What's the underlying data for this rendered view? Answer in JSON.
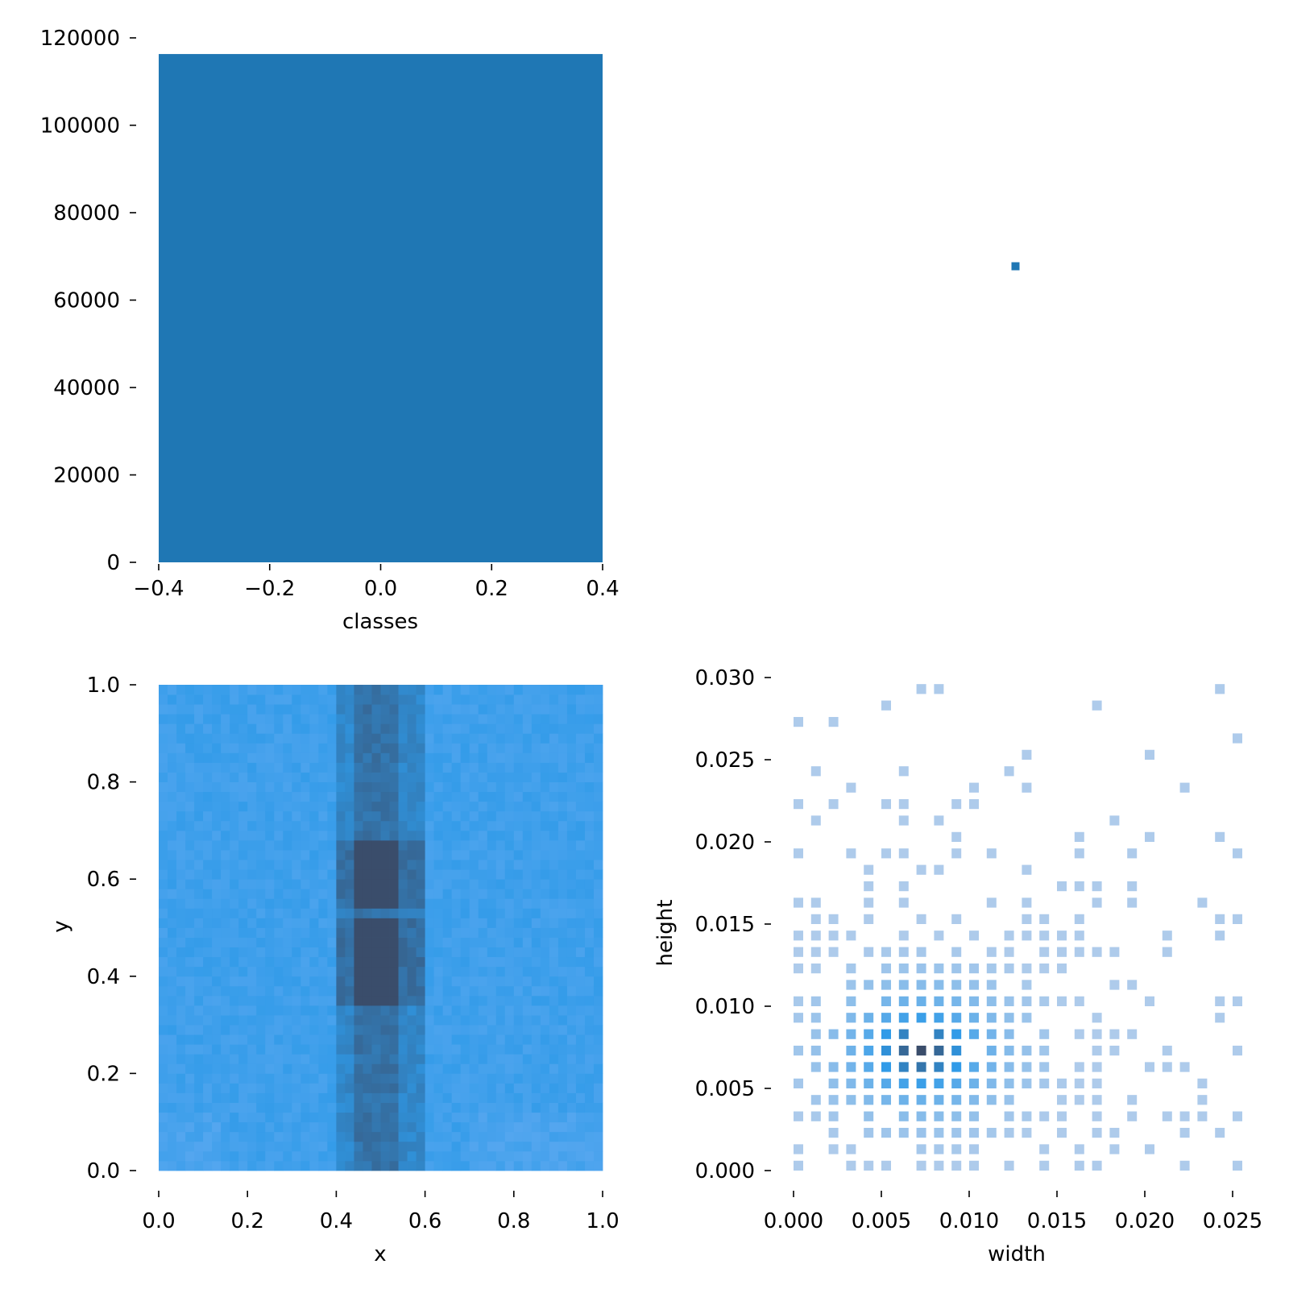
{
  "chart_data": [
    {
      "id": "classes-hist",
      "type": "bar",
      "xlabel": "classes",
      "ylabel": "",
      "xlim": [
        -0.4,
        0.4
      ],
      "ylim": [
        0,
        120000
      ],
      "xticks": [
        "−0.4",
        "−0.2",
        "0.0",
        "0.2",
        "0.4"
      ],
      "yticks": [
        "0",
        "20000",
        "40000",
        "60000",
        "80000",
        "100000",
        "120000"
      ],
      "categories": [
        "0"
      ],
      "values": [
        116300
      ],
      "color": "#1f77b4"
    },
    {
      "id": "corner-point",
      "type": "scatter",
      "note_visible": false,
      "points": [
        [
          0.5,
          0.5
        ]
      ],
      "color": "#1f77b4"
    },
    {
      "id": "xy-hist2d",
      "type": "heatmap",
      "xlabel": "x",
      "ylabel": "y",
      "xlim": [
        0,
        1
      ],
      "ylim": [
        0,
        1
      ],
      "xticks": [
        "0.0",
        "0.2",
        "0.4",
        "0.6",
        "0.8",
        "1.0"
      ],
      "yticks": [
        "0.0",
        "0.2",
        "0.4",
        "0.6",
        "0.8",
        "1.0"
      ],
      "bins": 50,
      "dense_band": {
        "x_center": 0.5,
        "x_halfwidth": 0.05,
        "peak_ranges_y": [
          [
            0.35,
            0.52
          ],
          [
            0.55,
            0.68
          ]
        ]
      },
      "colors": {
        "low": "#5aa8f0",
        "mid": "#2e9ae8",
        "high": "#3a4d6b"
      }
    },
    {
      "id": "wh-hist2d",
      "type": "heatmap",
      "xlabel": "width",
      "ylabel": "height",
      "xlim": [
        0,
        0.025
      ],
      "ylim": [
        0,
        0.03
      ],
      "xticks": [
        "0.000",
        "0.005",
        "0.010",
        "0.015",
        "0.020",
        "0.025"
      ],
      "yticks": [
        "0.000",
        "0.005",
        "0.010",
        "0.015",
        "0.020",
        "0.025",
        "0.030"
      ],
      "peak": {
        "width": 0.007,
        "height": 0.007
      },
      "colors": {
        "low": "#aecbeb",
        "mid": "#2e9ae8",
        "high": "#3a4d6b"
      }
    }
  ]
}
